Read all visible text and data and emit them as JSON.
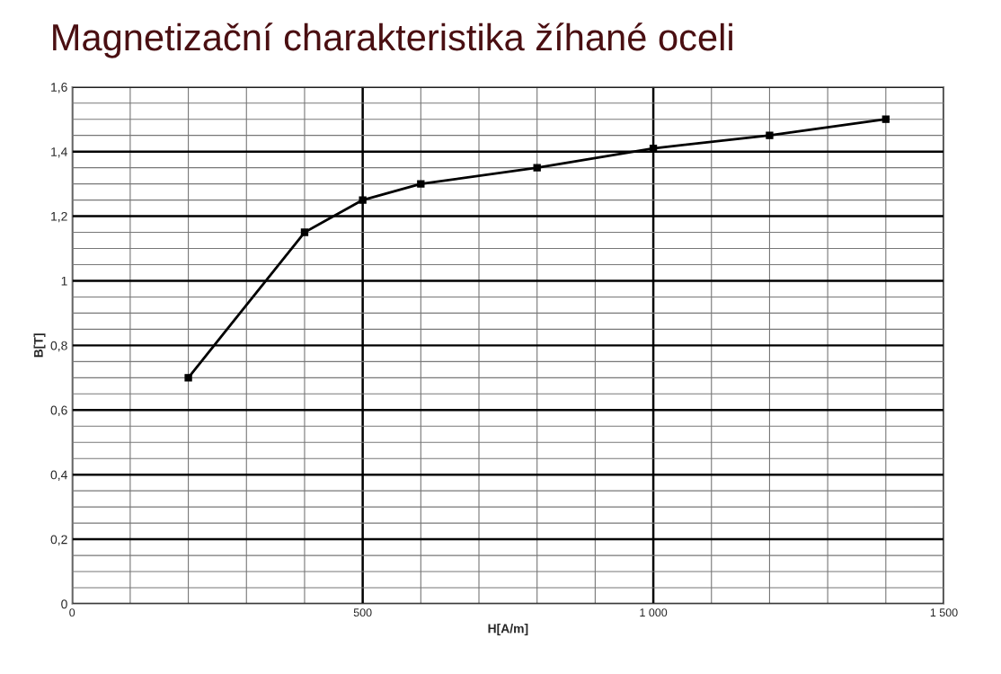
{
  "chart_data": {
    "type": "line",
    "title": "Magnetizační charakteristika žíhané oceli",
    "xlabel": "H[A/m]",
    "ylabel": "B[T]",
    "x": [
      200,
      400,
      500,
      600,
      800,
      1000,
      1200,
      1400
    ],
    "series": [
      {
        "color": "#000000",
        "values": [
          0.7,
          1.15,
          1.25,
          1.3,
          1.35,
          1.41,
          1.45,
          1.5
        ]
      }
    ],
    "xlim": [
      0,
      1500
    ],
    "xticks": [
      0,
      500,
      {
        "value": 1000,
        "label": "1 000"
      },
      {
        "value": 1500,
        "label": "1 500"
      }
    ],
    "ylim": [
      0,
      1.6
    ],
    "yticks": [
      0,
      {
        "value": 0.2,
        "label": "0,2"
      },
      {
        "value": 0.4,
        "label": "0,4"
      },
      {
        "value": 0.6,
        "label": "0,6"
      },
      {
        "value": 0.8,
        "label": "0,8"
      },
      1,
      {
        "value": 1.2,
        "label": "1,2"
      },
      {
        "value": 1.4,
        "label": "1,4"
      },
      {
        "value": 1.6,
        "label": "1,6"
      }
    ],
    "grid": true,
    "marker": "square",
    "line_style": "solid"
  }
}
